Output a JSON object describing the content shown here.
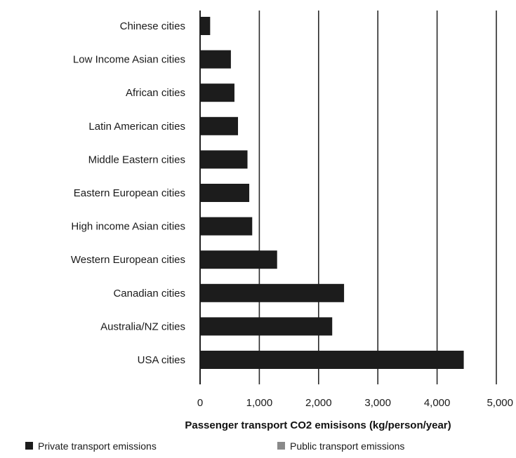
{
  "chart_data": {
    "type": "bar",
    "orientation": "horizontal",
    "stacked": true,
    "categories": [
      "Chinese cities",
      "Low Income Asian cities",
      "African cities",
      "Latin American cities",
      "Middle Eastern cities",
      "Eastern European cities",
      "High income Asian cities",
      "Western European cities",
      "Canadian cities",
      "Australia/NZ cities",
      "USA cities"
    ],
    "series": [
      {
        "name": "Private transport emissions",
        "color": "#1c1c1c",
        "values": [
          170,
          520,
          580,
          640,
          800,
          830,
          880,
          1300,
          2430,
          2230,
          4450
        ]
      },
      {
        "name": "Public transport emissions",
        "color": "#8a8a8a",
        "values": [
          0,
          0,
          0,
          0,
          0,
          0,
          0,
          0,
          0,
          0,
          0
        ]
      }
    ],
    "x_ticks": [
      0,
      1000,
      2000,
      3000,
      4000,
      5000
    ],
    "x_tick_labels": [
      "0",
      "1,000",
      "2,000",
      "3,000",
      "4,000",
      "5,000"
    ],
    "xlim": [
      0,
      5000
    ],
    "xlabel": "Passenger transport CO2 emisisons (kg/person/year)",
    "ylabel": "",
    "title": "",
    "grid": "vertical lines",
    "legend_position": "bottom"
  }
}
